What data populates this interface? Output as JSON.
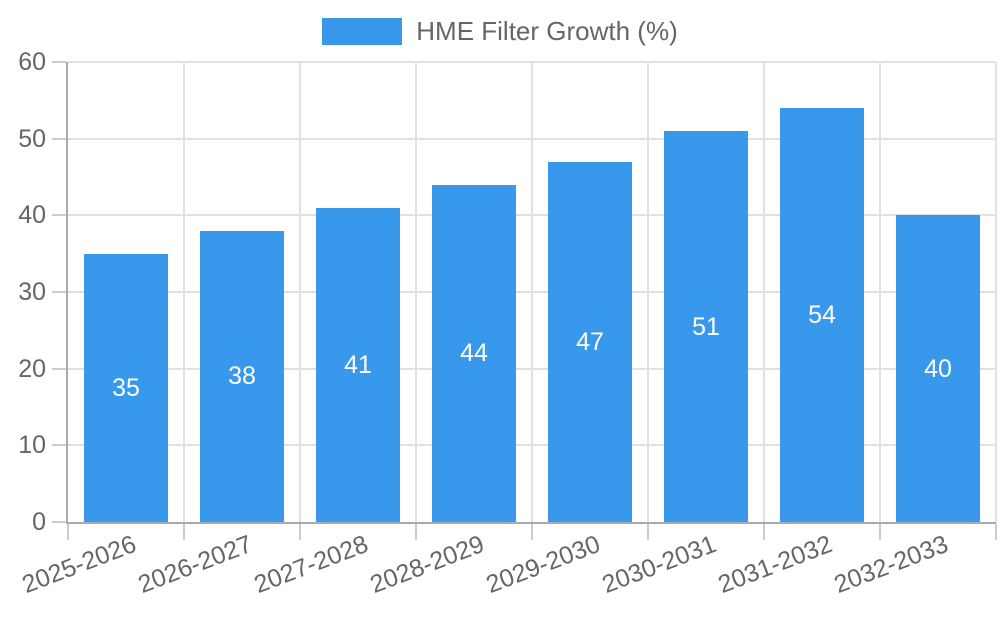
{
  "chart_data": {
    "type": "bar",
    "title": "HME Filter Growth (%)",
    "categories": [
      "2025-2026",
      "2026-2027",
      "2027-2028",
      "2028-2029",
      "2029-2030",
      "2030-2031",
      "2031-2032",
      "2032-2033"
    ],
    "series": [
      {
        "name": "HME Filter Growth (%)",
        "values": [
          35,
          38,
          41,
          44,
          47,
          51,
          54,
          40
        ]
      }
    ],
    "xlabel": "",
    "ylabel": "",
    "ylim": [
      0,
      60
    ],
    "y_ticks": [
      0,
      10,
      20,
      30,
      40,
      50,
      60
    ],
    "grid": true,
    "legend_position": "top",
    "value_labels_shown_inside_bars": true,
    "colors": {
      "bar": "#3898EC",
      "value_label_text": "#ffffff",
      "tick_text": "#666666",
      "axis_line": "#aaaaaa",
      "gridline": "#e1e1e1",
      "tick_mark": "#cccccc"
    }
  }
}
